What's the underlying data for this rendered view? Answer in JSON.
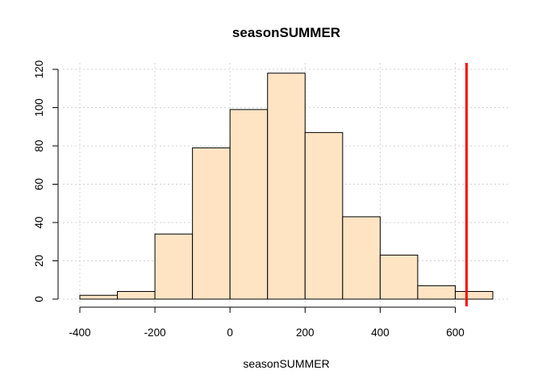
{
  "chart_data": {
    "type": "histogram",
    "title": "seasonSUMMER",
    "xlabel": "seasonSUMMER",
    "ylabel": "",
    "bins": [
      {
        "start": -400,
        "end": -300,
        "count": 2
      },
      {
        "start": -300,
        "end": -200,
        "count": 4
      },
      {
        "start": -200,
        "end": -100,
        "count": 34
      },
      {
        "start": -100,
        "end": 0,
        "count": 79
      },
      {
        "start": 0,
        "end": 100,
        "count": 99
      },
      {
        "start": 100,
        "end": 200,
        "count": 118
      },
      {
        "start": 200,
        "end": 300,
        "count": 87
      },
      {
        "start": 300,
        "end": 400,
        "count": 43
      },
      {
        "start": 400,
        "end": 500,
        "count": 23
      },
      {
        "start": 500,
        "end": 600,
        "count": 7
      },
      {
        "start": 600,
        "end": 700,
        "count": 4
      }
    ],
    "reference_line": {
      "x": 630,
      "color": "#ff0000"
    },
    "xticks": [
      -400,
      -200,
      0,
      200,
      400,
      600
    ],
    "yticks": [
      0,
      20,
      40,
      60,
      80,
      100,
      120
    ],
    "xlim": [
      -400,
      700
    ],
    "ylim": [
      0,
      120
    ],
    "grid": true,
    "bar_color": "#ffe4c4",
    "bar_border_color": "#000000",
    "grid_color": "#d3d3d3"
  }
}
